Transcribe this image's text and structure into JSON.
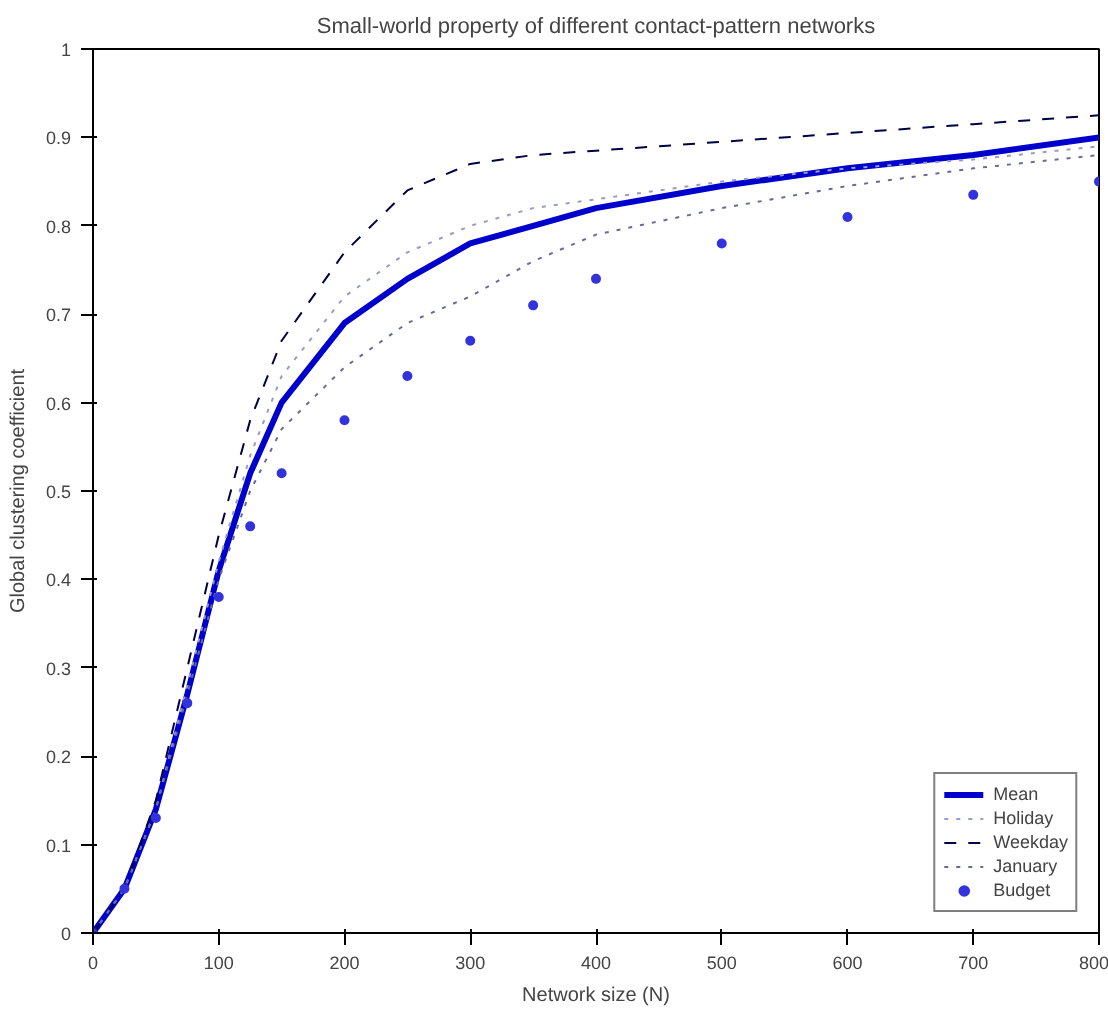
{
  "chart_data": {
    "type": "line",
    "title": "Small-world property of different contact-pattern networks",
    "xlabel": "Network size (N)",
    "ylabel": "Global clustering coefficient",
    "x": [
      0,
      25,
      50,
      75,
      100,
      125,
      150,
      200,
      250,
      300,
      350,
      400,
      500,
      600,
      700,
      800
    ],
    "xlim": [
      0,
      800
    ],
    "ylim": [
      0,
      1
    ],
    "xticks": [
      0,
      100,
      200,
      300,
      400,
      500,
      600,
      700,
      800
    ],
    "yticks": [
      0,
      0.1,
      0.2,
      0.3,
      0.4,
      0.5,
      0.6,
      0.7,
      0.8,
      0.9,
      1
    ],
    "grid": false,
    "legend": "bottom right",
    "series": [
      {
        "name": "Mean",
        "color": "#0000cc",
        "line_style": "solid",
        "values": [
          0,
          0.05,
          0.14,
          0.27,
          0.41,
          0.52,
          0.6,
          0.69,
          0.74,
          0.78,
          0.8,
          0.82,
          0.845,
          0.865,
          0.88,
          0.9
        ]
      },
      {
        "name": "Holiday",
        "color": "#9a9ac8",
        "line_style": "dotted",
        "values": [
          0,
          0.05,
          0.14,
          0.28,
          0.42,
          0.54,
          0.63,
          0.72,
          0.77,
          0.8,
          0.82,
          0.83,
          0.85,
          0.865,
          0.875,
          0.89
        ]
      },
      {
        "name": "Weekday",
        "color": "#000044",
        "line_style": "dashed",
        "values": [
          0,
          0.05,
          0.15,
          0.3,
          0.45,
          0.58,
          0.67,
          0.77,
          0.84,
          0.87,
          0.88,
          0.885,
          0.895,
          0.905,
          0.915,
          0.925
        ]
      },
      {
        "name": "January",
        "color": "#6a6a9a",
        "line_style": "dotted",
        "values": [
          0,
          0.05,
          0.14,
          0.27,
          0.4,
          0.5,
          0.57,
          0.64,
          0.69,
          0.72,
          0.76,
          0.79,
          0.82,
          0.845,
          0.865,
          0.88
        ]
      },
      {
        "name": "Budget",
        "type": "scatter",
        "color": "#3333dd",
        "marker": "circle",
        "values": [
          0,
          0.05,
          0.13,
          0.26,
          0.38,
          0.46,
          0.52,
          0.58,
          0.63,
          0.67,
          0.71,
          0.74,
          0.78,
          0.81,
          0.835,
          0.85
        ]
      }
    ]
  }
}
